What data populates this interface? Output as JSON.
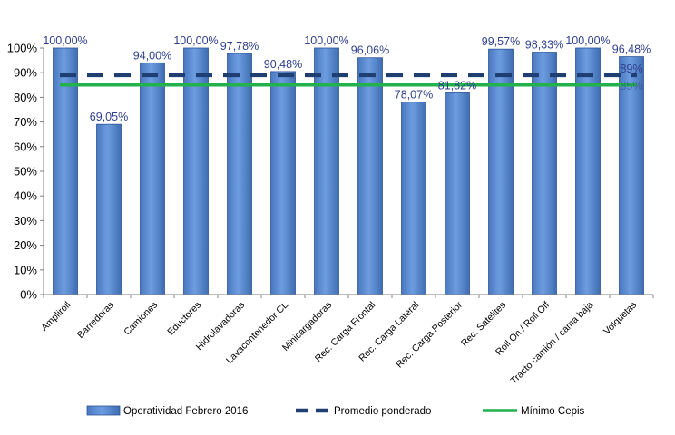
{
  "chart_data": {
    "type": "bar",
    "categories": [
      "Ampliroll",
      "Barredoras",
      "Camiones",
      "Eductores",
      "Hidrolavadoras",
      "Lavacontenedor CL",
      "Minicargadoras",
      "Rec. Carga Frontal",
      "Rec. Carga Lateral",
      "Rec. Carga Posterior",
      "Rec. Satelites",
      "Roll On / Roll Off",
      "Tracto camión / cama baja",
      "Volquetas"
    ],
    "series": [
      {
        "name": "Operatividad Febrero 2016",
        "type": "bar",
        "color": "#5b8fd6",
        "values": [
          100.0,
          69.05,
          94.0,
          100.0,
          97.78,
          90.48,
          100.0,
          96.06,
          78.07,
          81.82,
          99.57,
          98.33,
          100.0,
          96.48
        ],
        "labels": [
          "100,00%",
          "69,05%",
          "94,00%",
          "100,00%",
          "97,78%",
          "90,48%",
          "100,00%",
          "96,06%",
          "78,07%",
          "81,82%",
          "99,57%",
          "98,33%",
          "100,00%",
          "96,48%"
        ]
      },
      {
        "name": "Promedio ponderado",
        "type": "line",
        "style": "dashed",
        "color": "#1f3f73",
        "value": 89,
        "label": "89%"
      },
      {
        "name": "Mínimo Cepis",
        "type": "line",
        "style": "solid",
        "color": "#22b14c",
        "value": 85,
        "label": "85%"
      }
    ],
    "yticks": [
      "0%",
      "10%",
      "20%",
      "30%",
      "40%",
      "50%",
      "60%",
      "70%",
      "80%",
      "90%",
      "100%"
    ],
    "ylim": [
      0,
      100
    ],
    "grid": false,
    "legend": "bottom"
  }
}
